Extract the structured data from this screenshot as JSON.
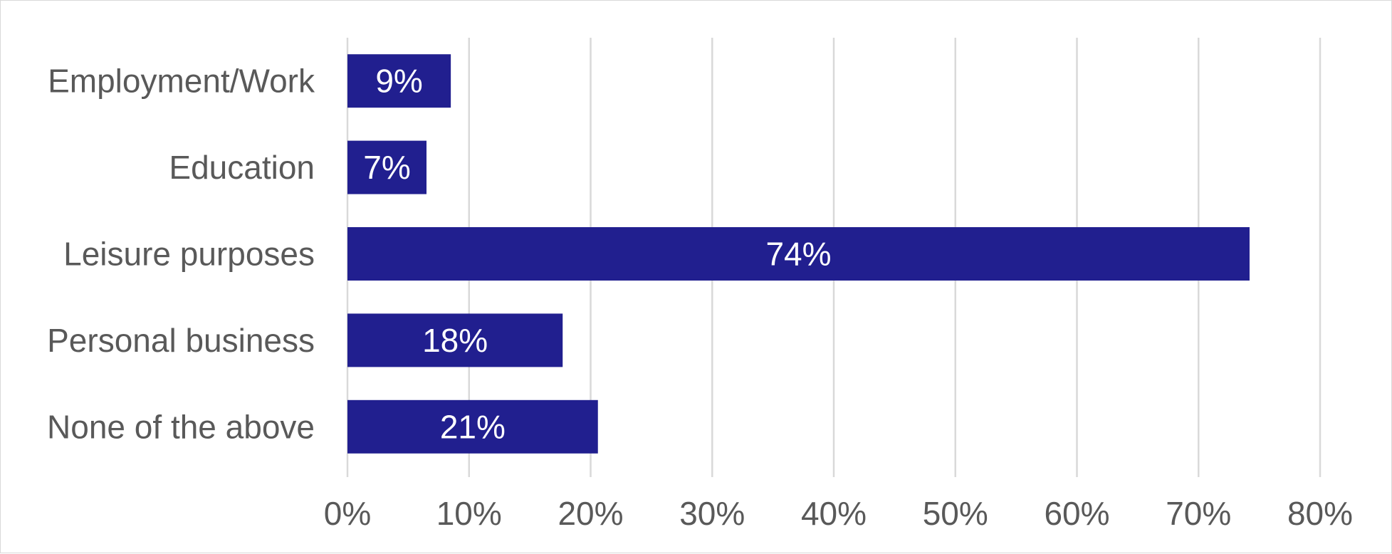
{
  "chart_data": {
    "type": "bar",
    "orientation": "horizontal",
    "categories": [
      "Employment/Work",
      "Education",
      "Leisure purposes",
      "Personal business",
      "None of the above"
    ],
    "values": [
      8.5,
      6.5,
      74.2,
      17.7,
      20.6
    ],
    "data_labels": [
      "9%",
      "7%",
      "74%",
      "18%",
      "21%"
    ],
    "x_ticks": [
      0,
      10,
      20,
      30,
      40,
      50,
      60,
      70,
      80
    ],
    "x_tick_labels": [
      "0%",
      "10%",
      "20%",
      "30%",
      "40%",
      "50%",
      "60%",
      "70%",
      "80%"
    ],
    "xlim": [
      0,
      80
    ],
    "title": "",
    "xlabel": "",
    "ylabel": "",
    "grid": "vertical",
    "legend": "none",
    "bar_color": "#211F8F",
    "label_color": "#FFFFFF",
    "text_color": "#595959",
    "grid_color": "#D9D9D9"
  }
}
